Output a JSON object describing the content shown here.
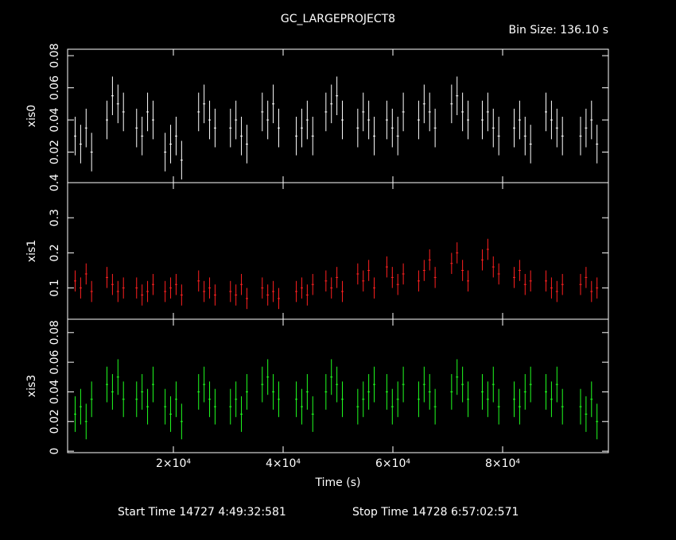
{
  "chart_data": {
    "type": "errorbar",
    "title": "GC_LARGEPROJECT8",
    "subtitle": "Bin Size: 136.10 s",
    "xlabel": "Time (s)",
    "footer": [
      "Start Time 14727  4:49:32:581",
      "Stop Time 14728  6:57:02:571"
    ],
    "xlim": [
      725,
      99275
    ],
    "xticks": [
      {
        "value": 20000,
        "label": "2×10⁴"
      },
      {
        "value": 40000,
        "label": "4×10⁴"
      },
      {
        "value": 60000,
        "label": "6×10⁴"
      },
      {
        "value": 80000,
        "label": "8×10⁴"
      }
    ],
    "x": [
      2100,
      3100,
      4100,
      5100,
      7900,
      8900,
      9900,
      10900,
      13300,
      14300,
      15300,
      16300,
      18500,
      19500,
      20500,
      21500,
      24600,
      25600,
      26600,
      27600,
      30400,
      31400,
      32400,
      33400,
      36200,
      37200,
      38200,
      39200,
      42400,
      43400,
      44400,
      45400,
      47800,
      48800,
      49800,
      50800,
      53600,
      54600,
      55600,
      56600,
      58900,
      59900,
      60900,
      61900,
      64700,
      65700,
      66700,
      67700,
      70700,
      71700,
      72700,
      73700,
      76300,
      77300,
      78300,
      79300,
      82100,
      83100,
      84100,
      85100,
      87900,
      88900,
      89900,
      90900,
      94200,
      95200,
      96200,
      97200
    ],
    "series": [
      {
        "name": "xis0",
        "color": "#ffffff",
        "yerr": 0.012,
        "ylim": [
          0.001,
          0.084
        ],
        "yticks": [
          0.02,
          0.04,
          0.06,
          0.08
        ],
        "values": [
          0.03,
          0.025,
          0.035,
          0.02,
          0.04,
          0.055,
          0.05,
          0.045,
          0.035,
          0.03,
          0.045,
          0.04,
          0.02,
          0.025,
          0.03,
          0.015,
          0.045,
          0.05,
          0.04,
          0.035,
          0.035,
          0.04,
          0.03,
          0.025,
          0.045,
          0.04,
          0.05,
          0.035,
          0.03,
          0.035,
          0.04,
          0.03,
          0.045,
          0.05,
          0.055,
          0.04,
          0.035,
          0.045,
          0.04,
          0.03,
          0.04,
          0.035,
          0.03,
          0.045,
          0.04,
          0.05,
          0.045,
          0.035,
          0.05,
          0.055,
          0.045,
          0.04,
          0.04,
          0.045,
          0.035,
          0.03,
          0.035,
          0.04,
          0.03,
          0.025,
          0.045,
          0.04,
          0.035,
          0.03,
          0.03,
          0.035,
          0.04,
          0.025
        ]
      },
      {
        "name": "xis1",
        "color": "#ff2020",
        "yerr": 0.03,
        "ylim": [
          0.011,
          0.4
        ],
        "yticks": [
          0.1,
          0.2,
          0.3,
          0.4
        ],
        "values": [
          0.12,
          0.1,
          0.14,
          0.09,
          0.13,
          0.11,
          0.09,
          0.1,
          0.1,
          0.08,
          0.09,
          0.11,
          0.09,
          0.1,
          0.11,
          0.08,
          0.12,
          0.09,
          0.1,
          0.08,
          0.09,
          0.08,
          0.11,
          0.07,
          0.1,
          0.08,
          0.09,
          0.07,
          0.09,
          0.1,
          0.08,
          0.11,
          0.12,
          0.1,
          0.13,
          0.09,
          0.14,
          0.12,
          0.15,
          0.1,
          0.16,
          0.13,
          0.11,
          0.14,
          0.12,
          0.15,
          0.18,
          0.13,
          0.17,
          0.2,
          0.15,
          0.12,
          0.18,
          0.21,
          0.16,
          0.14,
          0.13,
          0.15,
          0.11,
          0.12,
          0.12,
          0.1,
          0.09,
          0.11,
          0.11,
          0.13,
          0.09,
          0.1
        ]
      },
      {
        "name": "xis3",
        "color": "#20ff20",
        "yerr": 0.012,
        "ylim": [
          -0.001,
          0.089
        ],
        "yticks": [
          0,
          0.02,
          0.04,
          0.06,
          0.08
        ],
        "values": [
          0.025,
          0.03,
          0.02,
          0.035,
          0.045,
          0.04,
          0.05,
          0.035,
          0.035,
          0.04,
          0.03,
          0.045,
          0.03,
          0.025,
          0.035,
          0.02,
          0.04,
          0.045,
          0.035,
          0.03,
          0.03,
          0.035,
          0.025,
          0.04,
          0.045,
          0.05,
          0.04,
          0.035,
          0.035,
          0.03,
          0.04,
          0.025,
          0.04,
          0.05,
          0.045,
          0.035,
          0.03,
          0.035,
          0.04,
          0.045,
          0.04,
          0.03,
          0.035,
          0.045,
          0.035,
          0.045,
          0.04,
          0.03,
          0.04,
          0.05,
          0.045,
          0.035,
          0.04,
          0.035,
          0.045,
          0.03,
          0.035,
          0.03,
          0.04,
          0.045,
          0.04,
          0.035,
          0.045,
          0.03,
          0.03,
          0.025,
          0.035,
          0.02
        ]
      }
    ]
  }
}
